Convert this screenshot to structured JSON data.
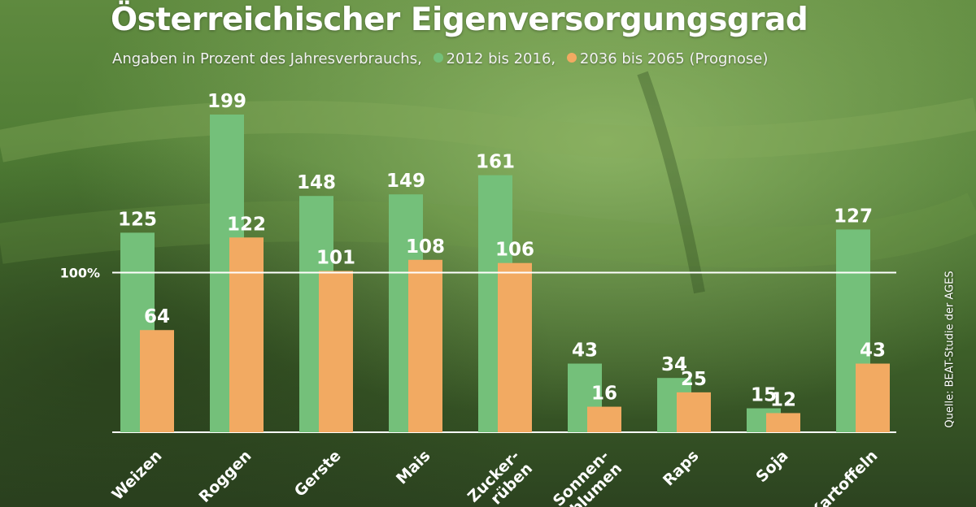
{
  "header": {
    "title": "Österreichischer Eigenversorgungsgrad",
    "subtitle_prefix": "Angaben in Prozent des Jahresverbrauchs,",
    "source": "Quelle: BEAT-Studie der AGES"
  },
  "chart_data": {
    "type": "bar",
    "title": "Österreichischer Eigenversorgungsgrad",
    "subtitle": "Angaben in Prozent des Jahresverbrauchs",
    "categories": [
      "Weizen",
      "Roggen",
      "Gerste",
      "Mais",
      "Zucker-rüben",
      "Sonnen-blumen",
      "Raps",
      "Soja",
      "Kartoffeln"
    ],
    "category_lines": [
      [
        "Weizen"
      ],
      [
        "Roggen"
      ],
      [
        "Gerste"
      ],
      [
        "Mais"
      ],
      [
        "Zucker-",
        "rüben"
      ],
      [
        "Sonnen-",
        "blumen"
      ],
      [
        "Raps"
      ],
      [
        "Soja"
      ],
      [
        "Kartoffeln"
      ]
    ],
    "series": [
      {
        "name": "2012 bis 2016",
        "color": "#74c07a",
        "values": [
          125,
          199,
          148,
          149,
          161,
          43,
          34,
          15,
          127
        ]
      },
      {
        "name": "2036 bis 2065 (Prognose)",
        "color": "#f2aa62",
        "values": [
          64,
          122,
          101,
          108,
          106,
          16,
          25,
          12,
          43
        ]
      }
    ],
    "reference_line": {
      "value": 100,
      "label": "100%"
    },
    "ylim": [
      0,
      210
    ],
    "legend_position": "subtitle",
    "grid": false,
    "xlabel": "",
    "ylabel": ""
  }
}
